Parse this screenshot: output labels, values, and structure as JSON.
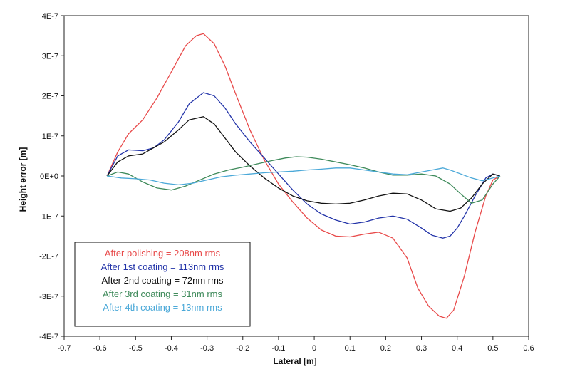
{
  "chart_data": {
    "type": "line",
    "xlabel": "Lateral [m]",
    "ylabel": "Height error [m]",
    "xlim": [
      -0.7,
      0.6
    ],
    "ylim": [
      -4e-07,
      4e-07
    ],
    "x_ticks": [
      "-0.7",
      "-0.6",
      "-0.5",
      "-0.4",
      "-0.3",
      "-0.2",
      "-0.1",
      "0",
      "0.1",
      "0.2",
      "0.3",
      "0.4",
      "0.5",
      "0.6"
    ],
    "y_ticks": [
      "4E-7",
      "3E-7",
      "2E-7",
      "1E-7",
      "0E+0",
      "-1E-7",
      "-2E-7",
      "-3E-7",
      "-4E-7"
    ],
    "grid": false,
    "legend_position": "bottom-left",
    "series": [
      {
        "name": "After polishing = 208nm rms",
        "color": "#e84a4a",
        "x": [
          -0.58,
          -0.55,
          -0.52,
          -0.48,
          -0.44,
          -0.4,
          -0.36,
          -0.33,
          -0.31,
          -0.28,
          -0.25,
          -0.22,
          -0.18,
          -0.14,
          -0.1,
          -0.06,
          -0.02,
          0.02,
          0.06,
          0.1,
          0.14,
          0.18,
          0.22,
          0.26,
          0.29,
          0.32,
          0.35,
          0.37,
          0.39,
          0.42,
          0.45,
          0.48,
          0.5,
          0.52
        ],
        "y": [
          0,
          6e-08,
          1.05e-07,
          1.4e-07,
          1.95e-07,
          2.6e-07,
          3.25e-07,
          3.5e-07,
          3.55e-07,
          3.3e-07,
          2.75e-07,
          2.05e-07,
          1.15e-07,
          4e-08,
          -2e-08,
          -6.5e-08,
          -1.05e-07,
          -1.35e-07,
          -1.5e-07,
          -1.52e-07,
          -1.45e-07,
          -1.4e-07,
          -1.55e-07,
          -2.05e-07,
          -2.8e-07,
          -3.25e-07,
          -3.5e-07,
          -3.55e-07,
          -3.35e-07,
          -2.5e-07,
          -1.4e-07,
          -5e-08,
          -1e-08,
          0
        ]
      },
      {
        "name": "After 1st coating = 113nm rms",
        "color": "#2233a8",
        "x": [
          -0.58,
          -0.55,
          -0.52,
          -0.48,
          -0.45,
          -0.42,
          -0.38,
          -0.35,
          -0.31,
          -0.28,
          -0.25,
          -0.22,
          -0.18,
          -0.14,
          -0.1,
          -0.06,
          -0.02,
          0.02,
          0.06,
          0.1,
          0.14,
          0.18,
          0.22,
          0.26,
          0.3,
          0.33,
          0.36,
          0.38,
          0.4,
          0.42,
          0.45,
          0.48,
          0.5,
          0.52
        ],
        "y": [
          0,
          5e-08,
          6.5e-08,
          6.3e-08,
          7e-08,
          9e-08,
          1.35e-07,
          1.8e-07,
          2.08e-07,
          2e-07,
          1.7e-07,
          1.3e-07,
          8.5e-08,
          4.5e-08,
          5e-09,
          -3.5e-08,
          -7e-08,
          -9.5e-08,
          -1.1e-07,
          -1.2e-07,
          -1.15e-07,
          -1.05e-07,
          -1e-07,
          -1.08e-07,
          -1.3e-07,
          -1.48e-07,
          -1.55e-07,
          -1.5e-07,
          -1.3e-07,
          -1e-07,
          -5e-08,
          -5e-09,
          5e-09,
          0
        ]
      },
      {
        "name": "After 2nd coating = 72nm rms",
        "color": "#111111",
        "x": [
          -0.58,
          -0.55,
          -0.52,
          -0.48,
          -0.45,
          -0.42,
          -0.38,
          -0.35,
          -0.31,
          -0.28,
          -0.25,
          -0.22,
          -0.18,
          -0.14,
          -0.1,
          -0.06,
          -0.02,
          0.02,
          0.06,
          0.1,
          0.14,
          0.18,
          0.22,
          0.26,
          0.3,
          0.34,
          0.38,
          0.41,
          0.44,
          0.47,
          0.5,
          0.52
        ],
        "y": [
          0,
          3.5e-08,
          5e-08,
          5.5e-08,
          7e-08,
          8.5e-08,
          1.15e-07,
          1.4e-07,
          1.48e-07,
          1.3e-07,
          9.5e-08,
          6e-08,
          2.5e-08,
          -5e-09,
          -3e-08,
          -5e-08,
          -6.2e-08,
          -6.8e-08,
          -7e-08,
          -6.8e-08,
          -6e-08,
          -5e-08,
          -4.3e-08,
          -4.5e-08,
          -6e-08,
          -8.2e-08,
          -8.8e-08,
          -8e-08,
          -5.5e-08,
          -2e-08,
          5e-09,
          0
        ]
      },
      {
        "name": "After 3rd coating = 31nm rms",
        "color": "#3e8a5a",
        "x": [
          -0.58,
          -0.55,
          -0.52,
          -0.48,
          -0.44,
          -0.4,
          -0.36,
          -0.32,
          -0.28,
          -0.24,
          -0.2,
          -0.16,
          -0.12,
          -0.08,
          -0.05,
          -0.02,
          0.02,
          0.06,
          0.1,
          0.14,
          0.18,
          0.22,
          0.26,
          0.3,
          0.34,
          0.38,
          0.41,
          0.44,
          0.47,
          0.5,
          0.52
        ],
        "y": [
          0,
          1e-08,
          5e-09,
          -1.5e-08,
          -3e-08,
          -3.5e-08,
          -2.5e-08,
          -1e-08,
          5e-09,
          1.5e-08,
          2.2e-08,
          3e-08,
          3.8e-08,
          4.5e-08,
          4.8e-08,
          4.7e-08,
          4.2e-08,
          3.5e-08,
          2.8e-08,
          2e-08,
          1e-08,
          2e-09,
          2e-09,
          5e-09,
          0.0,
          -2e-08,
          -4.5e-08,
          -6.8e-08,
          -6e-08,
          -2e-08,
          0
        ]
      },
      {
        "name": "After 4th coating = 13nm rms",
        "color": "#4aa8d8",
        "x": [
          -0.58,
          -0.54,
          -0.5,
          -0.46,
          -0.42,
          -0.38,
          -0.34,
          -0.3,
          -0.26,
          -0.22,
          -0.18,
          -0.14,
          -0.1,
          -0.06,
          -0.02,
          0.02,
          0.06,
          0.1,
          0.14,
          0.18,
          0.22,
          0.26,
          0.3,
          0.33,
          0.36,
          0.38,
          0.41,
          0.44,
          0.47,
          0.5,
          0.52
        ],
        "y": [
          0,
          -5e-09,
          -7e-09,
          -1e-08,
          -1.8e-08,
          -2.2e-08,
          -1.8e-08,
          -1e-08,
          -2e-09,
          2e-09,
          5e-09,
          8e-09,
          1e-08,
          1.2e-08,
          1.5e-08,
          1.7e-08,
          2e-08,
          2e-08,
          1.5e-08,
          1e-08,
          5e-09,
          3e-09,
          1e-08,
          1.5e-08,
          2e-08,
          1.5e-08,
          5e-09,
          -5e-09,
          -1.2e-08,
          -5e-09,
          0
        ]
      }
    ]
  }
}
